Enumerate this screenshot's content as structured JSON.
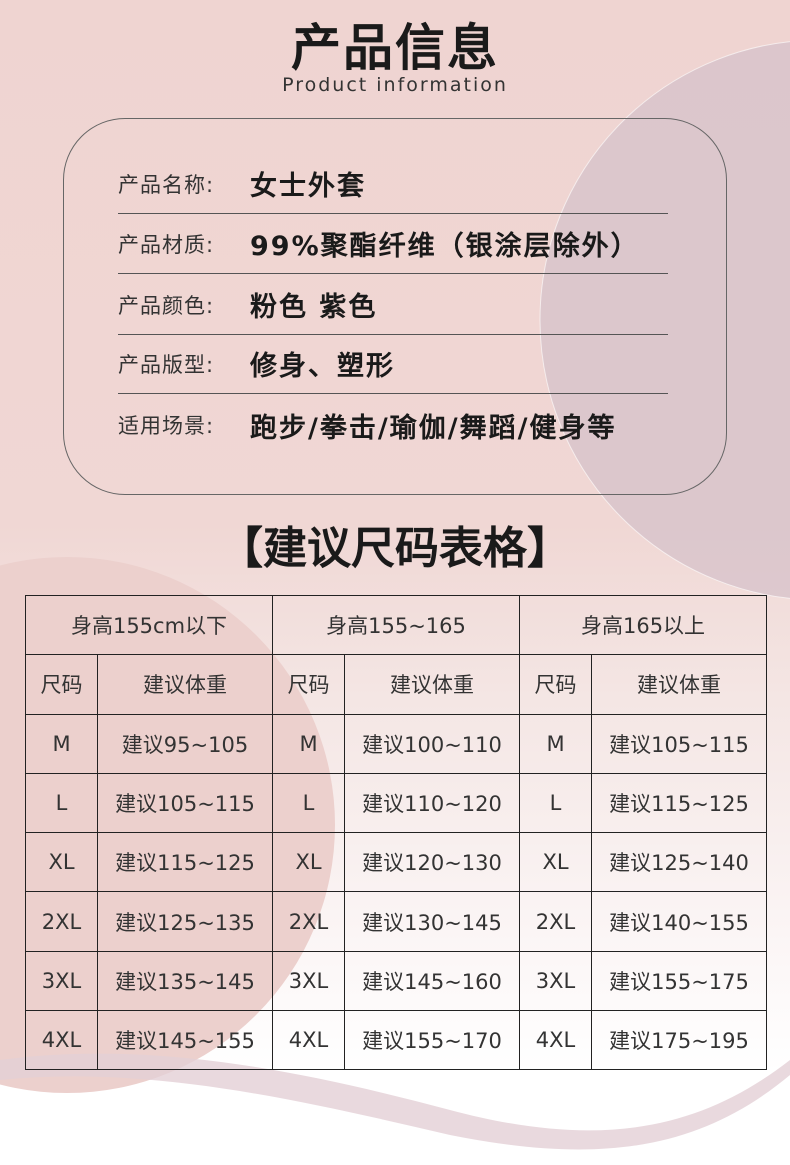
{
  "header": {
    "title": "产品信息",
    "subtitle": "Product information"
  },
  "info": [
    {
      "label": "产品名称:",
      "value": "女士外套"
    },
    {
      "label": "产品材质:",
      "value": "99%聚酯纤维（银涂层除外）"
    },
    {
      "label": "产品颜色:",
      "value": "粉色 紫色"
    },
    {
      "label": "产品版型:",
      "value": "修身、塑形"
    },
    {
      "label": "适用场景:",
      "value": "跑步/拳击/瑜伽/舞蹈/健身等"
    }
  ],
  "size_chart": {
    "title": "【建议尺码表格】",
    "groups": [
      "身高155cm以下",
      "身高155~165",
      "身高165以上"
    ],
    "col_size": "尺码",
    "col_weight": "建议体重",
    "rows": [
      [
        "M",
        "建议95~105",
        "M",
        "建议100~110",
        "M",
        "建议105~115"
      ],
      [
        "L",
        "建议105~115",
        "L",
        "建议110~120",
        "L",
        "建议115~125"
      ],
      [
        "XL",
        "建议115~125",
        "XL",
        "建议120~130",
        "XL",
        "建议125~140"
      ],
      [
        "2XL",
        "建议125~135",
        "2XL",
        "建议130~145",
        "2XL",
        "建议140~155"
      ],
      [
        "3XL",
        "建议135~145",
        "3XL",
        "建议145~160",
        "3XL",
        "建议155~175"
      ],
      [
        "4XL",
        "建议145~155",
        "4XL",
        "建议155~170",
        "4XL",
        "建议175~195"
      ]
    ]
  },
  "colors": {
    "background": "#efd4d1",
    "accent_circle": "#d6c2ca",
    "pink_circle": "#ecd0cd"
  }
}
